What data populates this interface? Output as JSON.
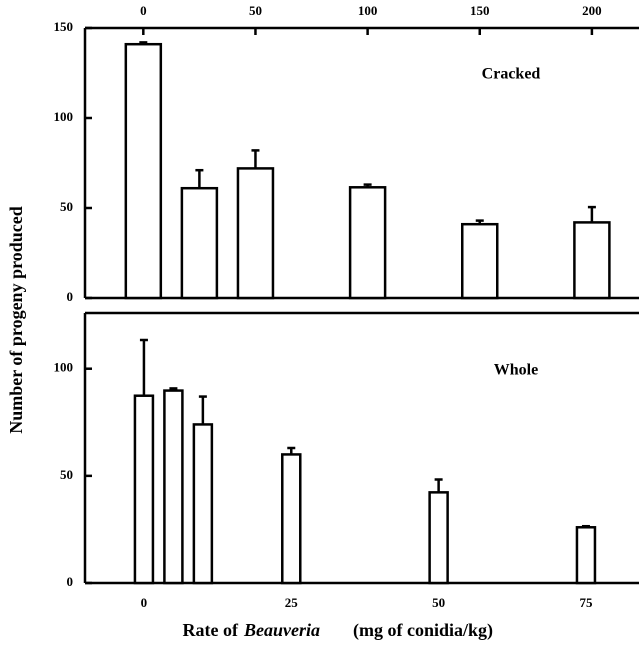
{
  "chart_data": [
    {
      "type": "bar",
      "annotation": "Cracked",
      "y_label": "Number of progeny produced",
      "x": [
        0,
        25,
        50,
        100,
        150,
        200
      ],
      "values": [
        141,
        61,
        72,
        61.5,
        41,
        42
      ],
      "errors": [
        1,
        10,
        10,
        1.5,
        2,
        8.5
      ],
      "xlim": [
        -26,
        221
      ],
      "xticks": [
        0,
        50,
        100,
        150,
        200
      ],
      "ylim": [
        0,
        150
      ],
      "yticks": [
        0,
        50,
        100,
        150
      ],
      "color": "#ffffff"
    },
    {
      "type": "bar",
      "annotation": "Whole",
      "x_label": [
        "Rate of",
        "Beauveria",
        "(mg of conidia/kg)"
      ],
      "x": [
        0,
        5,
        10,
        25,
        50,
        75
      ],
      "values": [
        87.4,
        89.8,
        74,
        60,
        42.3,
        26
      ],
      "errors": [
        26,
        1,
        13,
        3,
        6,
        0.5
      ],
      "xlim": [
        -10,
        84
      ],
      "xticks": [
        0,
        25,
        50,
        75
      ],
      "ylim": [
        0,
        126
      ],
      "yticks": [
        0,
        50,
        100
      ],
      "color": "#ffffff"
    }
  ]
}
